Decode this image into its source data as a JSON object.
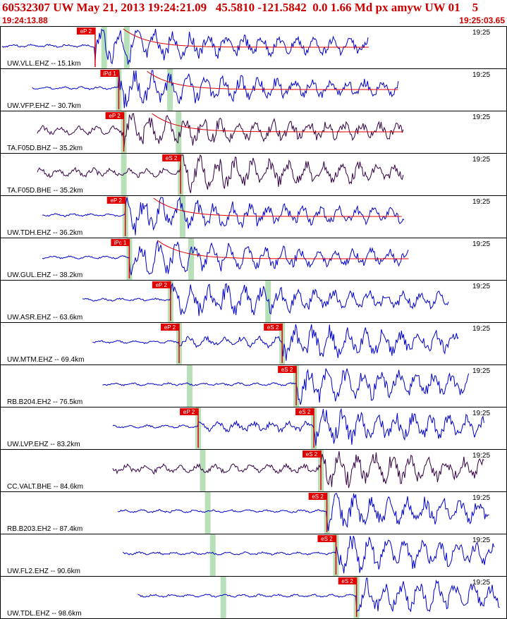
{
  "header": {
    "title": "60532307 UW May 21, 2013 19:24:21.09   45.5810 -121.5842  0.0 1.66 Md px amyw UW 01    5",
    "start_time": "19:24:13.88",
    "end_time": "19:25:03.65"
  },
  "colors": {
    "frame": "#000000",
    "trace_blue": "#0000cc",
    "trace_dark": "#330044",
    "pick": "#e00000",
    "green_marker": "#b8e0b8",
    "header_text": "#cc0000",
    "pick_label_text": "#ffffff"
  },
  "time_tick_label": "19:25",
  "traces": [
    {
      "label": "UW.VLL.EHZ -- 15.1km",
      "color": "dark_blue",
      "picks": [
        "eP 2"
      ],
      "coda": true,
      "picks_t": [
        0.185
      ],
      "greens_t": [
        0.203,
        0.248
      ]
    },
    {
      "label": "UW.VFP.EHZ -- 30.7km",
      "color": "dark_blue",
      "picks": [
        "iPd 1"
      ],
      "coda": true,
      "picks_t": [
        0.232
      ],
      "greens_t": [
        0.232,
        0.334
      ]
    },
    {
      "label": "TA.F05D.BHZ -- 35.2km",
      "color": "dark_purple",
      "picks": [
        "eP 2"
      ],
      "coda": true,
      "picks_t": [
        0.242
      ],
      "greens_t": [
        0.242,
        0.351
      ]
    },
    {
      "label": "TA.F05D.BHE -- 35.2km",
      "color": "dark_purple",
      "picks": [
        "eS 2"
      ],
      "coda": false,
      "picks_t": [
        0.355
      ],
      "greens_t": [
        0.242,
        0.355
      ]
    },
    {
      "label": "UW.TDH.EHZ -- 36.2km",
      "color": "dark_blue",
      "picks": [
        "eP 2"
      ],
      "coda": true,
      "picks_t": [
        0.245
      ],
      "greens_t": [
        0.245,
        0.359
      ]
    },
    {
      "label": "UW.GUL.EHZ -- 38.2km",
      "color": "dark_blue",
      "picks": [
        "iPc 1"
      ],
      "coda": true,
      "picks_t": [
        0.253
      ],
      "greens_t": [
        0.253,
        0.376
      ]
    },
    {
      "label": "UW.ASR.EHZ -- 63.6km",
      "color": "dark_blue",
      "picks": [
        "eP 2"
      ],
      "coda": false,
      "picks_t": [
        0.335
      ],
      "greens_t": [
        0.335,
        0.529
      ]
    },
    {
      "label": "UW.MTM.EHZ -- 69.4km",
      "color": "dark_blue",
      "picks": [
        "eP 2",
        "eS 2"
      ],
      "coda": false,
      "picks_t": [
        0.352,
        0.557
      ],
      "greens_t": [
        0.352,
        0.557
      ]
    },
    {
      "label": "RB.B204.EH2 -- 76.5km",
      "color": "dark_blue",
      "picks": [
        "eS 2"
      ],
      "coda": false,
      "picks_t": [
        0.585
      ],
      "greens_t": [
        0.373,
        0.585
      ]
    },
    {
      "label": "UW.LVP.EHZ -- 83.2km",
      "color": "dark_blue",
      "picks": [
        "eP 2",
        "eS 2"
      ],
      "coda": false,
      "picks_t": [
        0.39,
        0.62
      ],
      "greens_t": [
        0.39,
        0.62
      ]
    },
    {
      "label": "CC.VALT.BHE -- 84.6km",
      "color": "dark_purple",
      "picks": [
        "eS 2"
      ],
      "coda": false,
      "picks_t": [
        0.634
      ],
      "greens_t": [
        0.399,
        0.634
      ]
    },
    {
      "label": "RB.B203.EH2 -- 87.4km",
      "color": "dark_blue",
      "picks": [
        "eS 2"
      ],
      "coda": false,
      "picks_t": [
        0.646
      ],
      "greens_t": [
        0.409,
        0.646
      ]
    },
    {
      "label": "UW.FL2.EHZ -- 90.6km",
      "color": "dark_blue",
      "picks": [
        "eS 2"
      ],
      "coda": false,
      "picks_t": [
        0.664
      ],
      "greens_t": [
        0.419,
        0.664
      ]
    },
    {
      "label": "UW.TDL.EHZ -- 98.6km",
      "color": "dark_blue",
      "picks": [
        "eS 2"
      ],
      "coda": false,
      "picks_t": [
        0.705
      ],
      "greens_t": [
        0.44,
        0.705
      ]
    }
  ]
}
